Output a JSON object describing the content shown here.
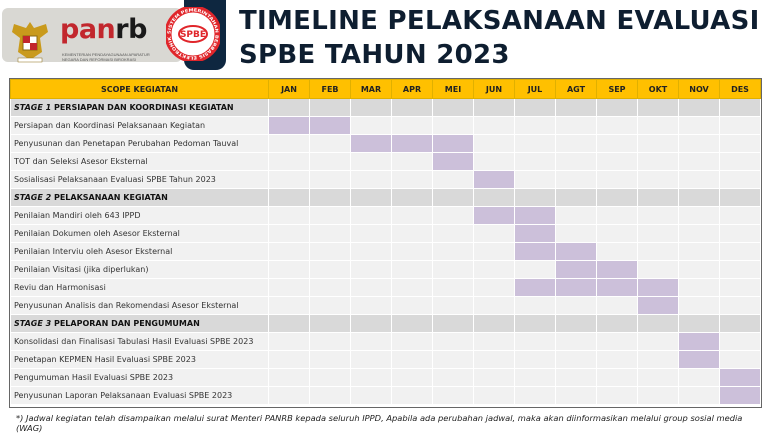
{
  "header": {
    "logo_text_pan": "pan",
    "logo_text_rb": "rb",
    "logo_subtitle": "KEMENTERIAN PENDAYAGUNAAN APARATUR NEGARA DAN REFORMASI BIROKRASI",
    "spbe_logo": "SPBE",
    "spbe_logo_ring": "SISTEM PEMERINTAHAN BERBASIS ELEKTRONIK",
    "title_line1": "TIMELINE PELAKSANAAN EVALUASI",
    "title_line2": "SPBE TAHUN 2023"
  },
  "colors": {
    "header_bg": "#ffc000",
    "bar": "#ccc0da",
    "stage_bg": "#d9d9d9",
    "row_bg": "#f1f1f1",
    "title": "#0e1e30"
  },
  "table": {
    "scope_header": "SCOPE KEGIATAN",
    "months": [
      "JAN",
      "FEB",
      "MAR",
      "APR",
      "MEI",
      "JUN",
      "JUL",
      "AGT",
      "SEP",
      "OKT",
      "NOV",
      "DES"
    ],
    "rows": [
      {
        "type": "stage",
        "prefix": "STAGE 1",
        "label": " PERSIAPAN DAN KOORDINASI KEGIATAN"
      },
      {
        "type": "item",
        "label": "Persiapan dan Koordinasi Pelaksanaan Kegiatan",
        "start": "JAN",
        "end": "FEB"
      },
      {
        "type": "item",
        "label": "Penyusunan dan Penetapan Perubahan Pedoman Tauval",
        "start": "MAR",
        "end": "MEI"
      },
      {
        "type": "item",
        "label": "TOT dan Seleksi Asesor Eksternal",
        "start": "MEI",
        "end": "MEI"
      },
      {
        "type": "item",
        "label": "Sosialisasi Pelaksanaan Evaluasi SPBE Tahun 2023",
        "start": "JUN",
        "end": "JUN"
      },
      {
        "type": "stage",
        "prefix": "STAGE 2",
        "label": " PELAKSANAAN KEGIATAN"
      },
      {
        "type": "item",
        "label": "Penilaian Mandiri oleh 643 IPPD",
        "start": "JUN",
        "end": "JUL"
      },
      {
        "type": "item",
        "label": "Penilaian Dokumen oleh Asesor Eksternal",
        "start": "JUL",
        "end": "JUL"
      },
      {
        "type": "item",
        "label": "Penilaian Interviu oleh Asesor Eksternal",
        "start": "JUL",
        "end": "AGT"
      },
      {
        "type": "item",
        "label": "Penilaian Visitasi (jika diperlukan)",
        "start": "AGT",
        "end": "SEP"
      },
      {
        "type": "item",
        "label": "Reviu dan Harmonisasi",
        "start": "JUL",
        "end": "OKT"
      },
      {
        "type": "item",
        "label": "Penyusunan Analisis dan Rekomendasi Asesor Eksternal",
        "start": "OKT",
        "end": "OKT"
      },
      {
        "type": "stage",
        "prefix": "STAGE 3",
        "label": " PELAPORAN DAN PENGUMUMAN"
      },
      {
        "type": "item",
        "label": "Konsolidasi dan Finalisasi Tabulasi Hasil Evaluasi SPBE 2023",
        "start": "NOV",
        "end": "NOV"
      },
      {
        "type": "item",
        "label": "Penetapan KEPMEN Hasil Evaluasi SPBE 2023",
        "start": "NOV",
        "end": "NOV"
      },
      {
        "type": "item",
        "label": "Pengumuman Hasil Evaluasi SPBE 2023",
        "start": "DES",
        "end": "DES"
      },
      {
        "type": "item",
        "label": "Penyusunan Laporan Pelaksanaan Evaluasi SPBE 2023",
        "start": "DES",
        "end": "DES"
      }
    ]
  },
  "footnote": "*) Jadwal kegiatan telah disampaikan melalui surat Menteri PANRB kepada seluruh IPPD, Apabila ada perubahan jadwal, maka akan diinformasikan melalui group sosial media (WAG)"
}
